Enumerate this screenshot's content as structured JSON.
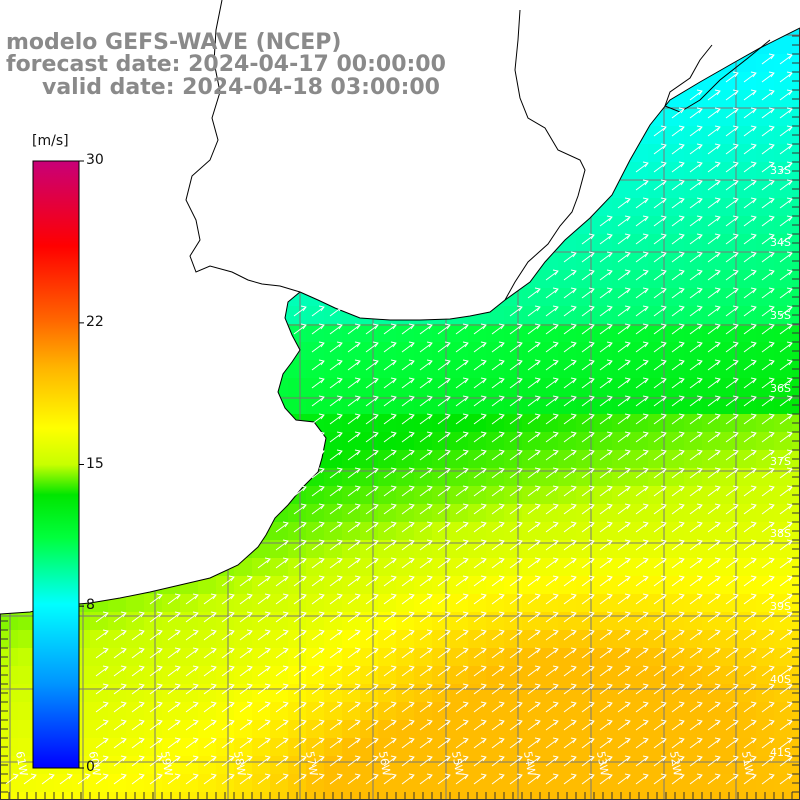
{
  "titles": {
    "model": "modelo GEFS-WAVE (NCEP)",
    "forecast": "forecast date: 2024-04-17 00:00:00",
    "valid": "valid date: 2024-04-18 03:00:00"
  },
  "colorbar": {
    "unit": "[m/s]",
    "min": 0,
    "max": 30,
    "ticks": [
      {
        "value": 30,
        "label": "30"
      },
      {
        "value": 22,
        "label": "22"
      },
      {
        "value": 15,
        "label": "15"
      },
      {
        "value": 8,
        "label": "8"
      },
      {
        "value": 0,
        "label": "0"
      }
    ],
    "colors": [
      "#0000ff",
      "#0096ff",
      "#00ffff",
      "#00ff3c",
      "#00e600",
      "#b4ff00",
      "#ffff00",
      "#ffb400",
      "#ff7800",
      "#ff0000",
      "#c80078"
    ]
  },
  "map": {
    "lon_labels": [
      "61W",
      "60W",
      "59W",
      "58W",
      "57W",
      "56W",
      "55W",
      "54W",
      "53W",
      "52W",
      "51W"
    ],
    "lat_labels": [
      "33S",
      "34S",
      "35S",
      "36S",
      "37S",
      "38S",
      "39S",
      "40S",
      "41S"
    ],
    "land_color": "#ffffff",
    "coast_color": "#000000",
    "arrow_color": "#ffffff",
    "arrow_direction": "northeast"
  }
}
